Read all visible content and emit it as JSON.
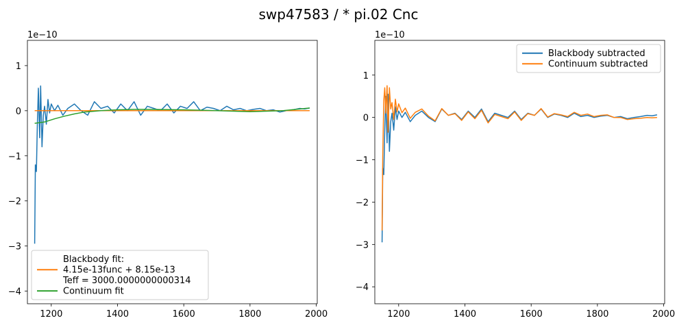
{
  "figure": {
    "title": "swp47583 / * pi.02 Cnc"
  },
  "chart_data": [
    {
      "type": "line",
      "panel": "left",
      "exponent_label": "1e−10",
      "xlim": [
        1128,
        2003
      ],
      "ylim": [
        -4.28,
        1.56
      ],
      "x_ticks": [
        1200,
        1400,
        1600,
        1800,
        2000
      ],
      "x_tick_labels": [
        "1200",
        "1400",
        "1600",
        "1800",
        "2000"
      ],
      "y_ticks": [
        1,
        0,
        -1,
        -2,
        -3,
        -4
      ],
      "y_tick_labels": [
        "1",
        "0",
        "−1",
        "−2",
        "−3",
        "−4"
      ],
      "grid": false,
      "legend_position": "lower-left",
      "legend": [
        {
          "label_lines": [
            "Blackbody fit:",
            "4.15e-13func + 8.15e-13",
            "Teff = 3000.0000000000314"
          ],
          "color": "#ff7f0e"
        },
        {
          "label_lines": [
            "Continuum fit"
          ],
          "color": "#2ca02c"
        }
      ],
      "series": [
        {
          "role": "data spectrum",
          "color": "#1f77b4",
          "x": [
            1150,
            1152,
            1155,
            1158,
            1161,
            1165,
            1168,
            1172,
            1176,
            1180,
            1185,
            1190,
            1195,
            1200,
            1210,
            1220,
            1235,
            1250,
            1270,
            1290,
            1310,
            1330,
            1350,
            1370,
            1390,
            1410,
            1430,
            1450,
            1470,
            1490,
            1510,
            1530,
            1550,
            1570,
            1590,
            1610,
            1630,
            1650,
            1670,
            1690,
            1710,
            1730,
            1750,
            1770,
            1790,
            1810,
            1830,
            1850,
            1870,
            1890,
            1910,
            1930,
            1950,
            1965,
            1980
          ],
          "y": [
            -2.95,
            -1.2,
            -1.35,
            -0.3,
            0.5,
            -0.6,
            0.55,
            -0.8,
            -0.1,
            0.1,
            -0.3,
            0.25,
            -0.05,
            0.15,
            0.0,
            0.12,
            -0.1,
            0.05,
            0.15,
            0.0,
            -0.1,
            0.2,
            0.05,
            0.1,
            -0.05,
            0.15,
            0.0,
            0.2,
            -0.1,
            0.1,
            0.05,
            0.0,
            0.15,
            -0.05,
            0.1,
            0.05,
            0.2,
            0.0,
            0.08,
            0.05,
            0.0,
            0.1,
            0.02,
            0.05,
            0.0,
            0.03,
            0.05,
            0.0,
            0.02,
            -0.03,
            0.0,
            0.02,
            0.05,
            0.04,
            0.06
          ]
        },
        {
          "role": "blackbody fit",
          "color": "#ff7f0e",
          "x": [
            1150,
            1300,
            1500,
            1700,
            1900,
            1980
          ],
          "y": [
            0.0,
            0.0,
            0.0,
            0.0,
            0.0,
            0.0
          ]
        },
        {
          "role": "continuum fit",
          "color": "#2ca02c",
          "x": [
            1150,
            1180,
            1210,
            1240,
            1270,
            1300,
            1350,
            1400,
            1450,
            1500,
            1600,
            1700,
            1800,
            1900,
            1980
          ],
          "y": [
            -0.28,
            -0.25,
            -0.18,
            -0.12,
            -0.07,
            -0.03,
            0.0,
            0.02,
            0.03,
            0.03,
            0.02,
            0.0,
            -0.02,
            0.0,
            0.06
          ]
        }
      ]
    },
    {
      "type": "line",
      "panel": "right",
      "exponent_label": "1e−10",
      "xlim": [
        1128,
        2003
      ],
      "ylim": [
        -4.4,
        1.82
      ],
      "x_ticks": [
        1200,
        1400,
        1600,
        1800,
        2000
      ],
      "x_tick_labels": [
        "1200",
        "1400",
        "1600",
        "1800",
        "2000"
      ],
      "y_ticks": [
        1,
        0,
        -1,
        -2,
        -3,
        -4
      ],
      "y_tick_labels": [
        "1",
        "0",
        "−1",
        "−2",
        "−3",
        "−4"
      ],
      "grid": false,
      "legend_position": "upper-right",
      "legend": [
        {
          "label_lines": [
            "Blackbody subtracted"
          ],
          "color": "#1f77b4"
        },
        {
          "label_lines": [
            "Continuum subtracted"
          ],
          "color": "#ff7f0e"
        }
      ],
      "series": [
        {
          "name": "Blackbody subtracted",
          "color": "#1f77b4",
          "x": [
            1150,
            1152,
            1155,
            1158,
            1161,
            1165,
            1168,
            1172,
            1176,
            1180,
            1185,
            1190,
            1195,
            1200,
            1210,
            1220,
            1235,
            1250,
            1270,
            1290,
            1310,
            1330,
            1350,
            1370,
            1390,
            1410,
            1430,
            1450,
            1470,
            1490,
            1510,
            1530,
            1550,
            1570,
            1590,
            1610,
            1630,
            1650,
            1670,
            1690,
            1710,
            1730,
            1750,
            1770,
            1790,
            1810,
            1830,
            1850,
            1870,
            1890,
            1910,
            1930,
            1950,
            1965,
            1980
          ],
          "y": [
            -2.95,
            -1.2,
            -1.35,
            -0.3,
            0.5,
            -0.6,
            0.55,
            -0.8,
            -0.1,
            0.1,
            -0.3,
            0.25,
            -0.05,
            0.15,
            0.0,
            0.12,
            -0.1,
            0.05,
            0.15,
            0.0,
            -0.1,
            0.2,
            0.05,
            0.1,
            -0.05,
            0.15,
            0.0,
            0.2,
            -0.1,
            0.1,
            0.05,
            0.0,
            0.15,
            -0.05,
            0.1,
            0.05,
            0.2,
            0.0,
            0.08,
            0.05,
            0.0,
            0.1,
            0.02,
            0.05,
            0.0,
            0.03,
            0.05,
            0.0,
            0.02,
            -0.03,
            0.0,
            0.02,
            0.05,
            0.04,
            0.06
          ]
        },
        {
          "name": "Continuum subtracted",
          "color": "#ff7f0e",
          "x": [
            1150,
            1152,
            1155,
            1158,
            1161,
            1165,
            1168,
            1172,
            1176,
            1180,
            1185,
            1190,
            1195,
            1200,
            1210,
            1220,
            1235,
            1250,
            1270,
            1290,
            1310,
            1330,
            1350,
            1370,
            1390,
            1410,
            1430,
            1450,
            1470,
            1490,
            1510,
            1530,
            1550,
            1570,
            1590,
            1610,
            1630,
            1650,
            1670,
            1690,
            1710,
            1730,
            1750,
            1770,
            1790,
            1810,
            1830,
            1850,
            1870,
            1890,
            1910,
            1930,
            1950,
            1965,
            1980
          ],
          "y": [
            -2.67,
            -0.9,
            0.4,
            0.7,
            0.1,
            0.75,
            -0.35,
            0.7,
            0.2,
            0.35,
            -0.05,
            0.43,
            0.13,
            0.32,
            0.11,
            0.22,
            -0.02,
            0.12,
            0.2,
            0.03,
            -0.08,
            0.21,
            0.05,
            0.09,
            -0.07,
            0.13,
            -0.03,
            0.17,
            -0.13,
            0.07,
            0.02,
            -0.03,
            0.13,
            -0.07,
            0.09,
            0.05,
            0.21,
            0.01,
            0.09,
            0.06,
            0.02,
            0.12,
            0.05,
            0.08,
            0.02,
            0.05,
            0.06,
            0.0,
            0.0,
            -0.05,
            -0.03,
            -0.02,
            0.0,
            -0.01,
            0.0
          ]
        }
      ]
    }
  ]
}
